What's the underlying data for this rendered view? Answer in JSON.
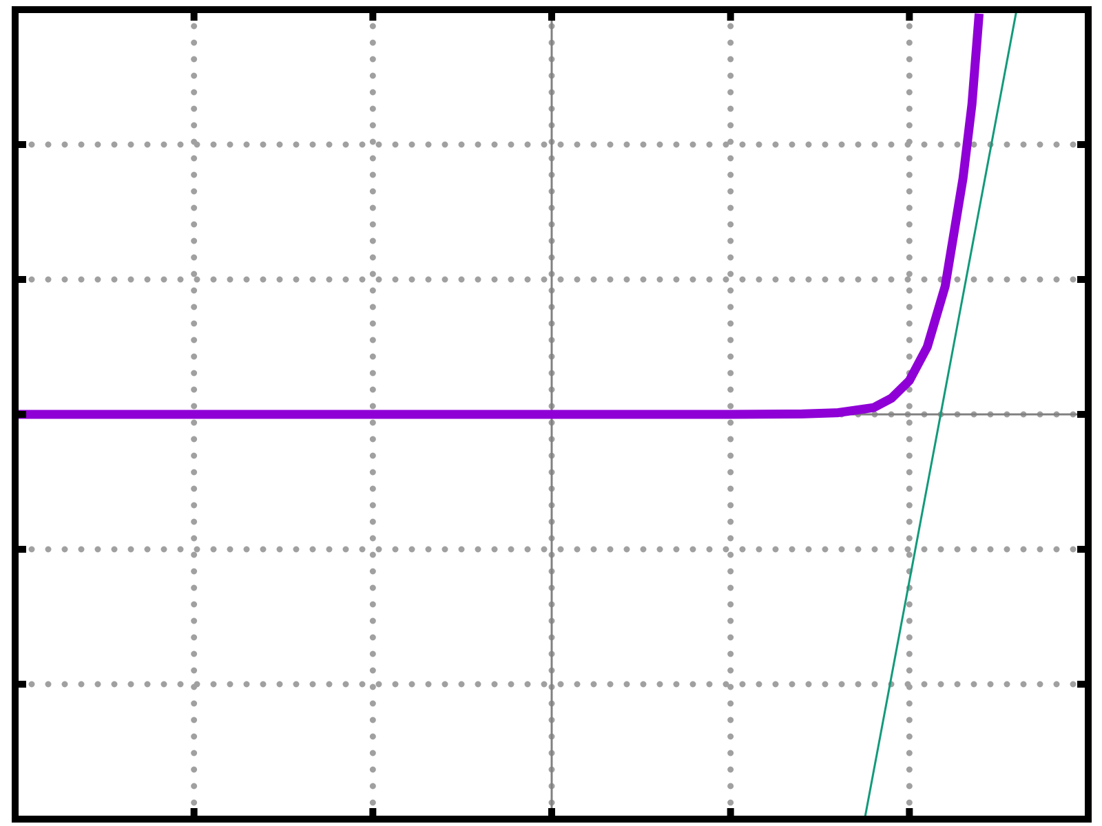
{
  "chart_data": {
    "type": "line",
    "title": "",
    "xlabel": "",
    "ylabel": "",
    "xlim": [
      -3,
      3
    ],
    "ylim": [
      -3,
      3
    ],
    "grid": true,
    "grid_style": "dotted",
    "x_ticks": [
      -2,
      -1,
      0,
      1,
      2
    ],
    "y_ticks": [
      -2,
      -1,
      1,
      2
    ],
    "tick_labels_shown": false,
    "axes_lines_at_zero": true,
    "legend": "none",
    "colors": {
      "curve": "#8f00d6",
      "tangent": "#129a7a",
      "grid": "#a0a0a0",
      "axis": "#808080",
      "frame": "#000000"
    },
    "series": [
      {
        "role": "curve",
        "points": [
          [
            -3,
            0
          ],
          [
            -2,
            0
          ],
          [
            -1,
            0
          ],
          [
            0,
            0
          ],
          [
            1,
            0
          ],
          [
            1.4,
            0.003
          ],
          [
            1.6,
            0.012
          ],
          [
            1.8,
            0.05
          ],
          [
            1.9,
            0.12
          ],
          [
            2.0,
            0.25
          ],
          [
            2.1,
            0.5
          ],
          [
            2.2,
            0.95
          ],
          [
            2.3,
            1.75
          ],
          [
            2.35,
            2.3
          ],
          [
            2.39,
            2.97
          ]
        ]
      },
      {
        "role": "tangent",
        "points": [
          [
            1.75,
            -3
          ],
          [
            2.6,
            3
          ]
        ]
      }
    ]
  }
}
